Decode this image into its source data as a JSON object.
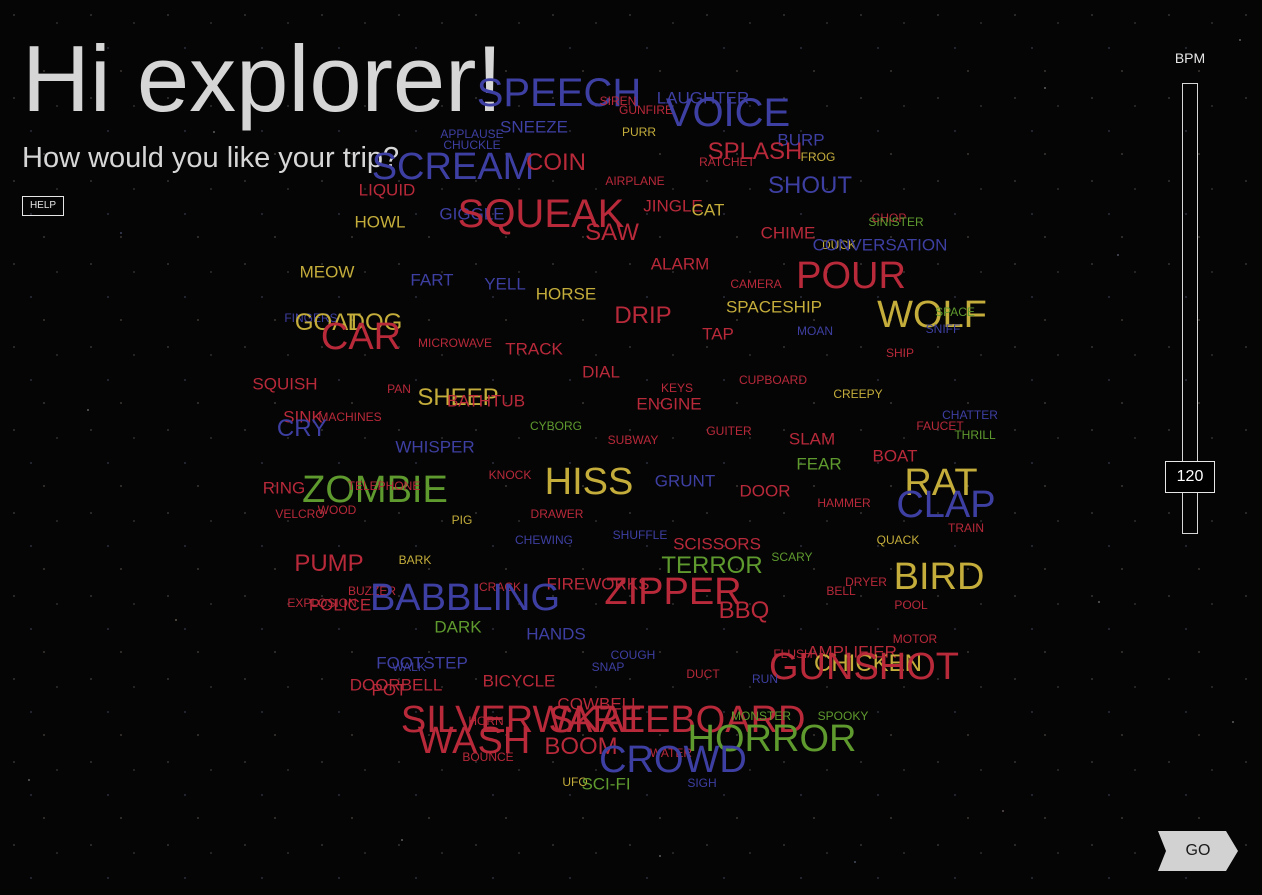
{
  "header": {
    "title": "Hi explorer!",
    "subtitle": "How would you like your trip?",
    "help_label": "HELP"
  },
  "bpm": {
    "label": "BPM",
    "value": 120
  },
  "go_label": "GO",
  "colors": {
    "red": "#b8293a",
    "blue": "#3e3fa2",
    "green": "#5f9a2e",
    "yellow": "#c4ad3b"
  },
  "word_cloud": [
    {
      "text": "SPEECH",
      "color": "blue"
    },
    {
      "text": "SIREN",
      "color": "red"
    },
    {
      "text": "LAUGHTER",
      "color": "blue"
    },
    {
      "text": "GUNFIRE",
      "color": "red"
    },
    {
      "text": "VOICE",
      "color": "blue"
    },
    {
      "text": "APPLAUSE",
      "color": "blue"
    },
    {
      "text": "SNEEZE",
      "color": "blue"
    },
    {
      "text": "PURR",
      "color": "yellow"
    },
    {
      "text": "BURP",
      "color": "blue"
    },
    {
      "text": "CHUCKLE",
      "color": "blue"
    },
    {
      "text": "SPLASH",
      "color": "red"
    },
    {
      "text": "SCREAM",
      "color": "blue"
    },
    {
      "text": "COIN",
      "color": "red"
    },
    {
      "text": "RATCHET",
      "color": "red"
    },
    {
      "text": "FROG",
      "color": "yellow"
    },
    {
      "text": "SHOUT",
      "color": "blue"
    },
    {
      "text": "LIQUID",
      "color": "red"
    },
    {
      "text": "AIRPLANE",
      "color": "red"
    },
    {
      "text": "HOWL",
      "color": "yellow"
    },
    {
      "text": "GIGGLE",
      "color": "blue"
    },
    {
      "text": "SQUEAK",
      "color": "red"
    },
    {
      "text": "JINGLE",
      "color": "red"
    },
    {
      "text": "CAT",
      "color": "yellow"
    },
    {
      "text": "CHOP",
      "color": "red"
    },
    {
      "text": "SINISTER",
      "color": "green"
    },
    {
      "text": "SAW",
      "color": "red"
    },
    {
      "text": "CHIME",
      "color": "red"
    },
    {
      "text": "DUCK",
      "color": "yellow"
    },
    {
      "text": "CONVERSATION",
      "color": "blue"
    },
    {
      "text": "MEOW",
      "color": "yellow"
    },
    {
      "text": "ALARM",
      "color": "red"
    },
    {
      "text": "POUR",
      "color": "red"
    },
    {
      "text": "FART",
      "color": "blue"
    },
    {
      "text": "YELL",
      "color": "blue"
    },
    {
      "text": "CAMERA",
      "color": "red"
    },
    {
      "text": "HORSE",
      "color": "yellow"
    },
    {
      "text": "SPACESHIP",
      "color": "yellow"
    },
    {
      "text": "WOLF",
      "color": "yellow"
    },
    {
      "text": "SPACE",
      "color": "green"
    },
    {
      "text": "FINGERS",
      "color": "blue"
    },
    {
      "text": "GOAT",
      "color": "yellow"
    },
    {
      "text": "DOG",
      "color": "yellow"
    },
    {
      "text": "DRIP",
      "color": "red"
    },
    {
      "text": "CAR",
      "color": "red"
    },
    {
      "text": "TAP",
      "color": "red"
    },
    {
      "text": "MOAN",
      "color": "blue"
    },
    {
      "text": "SNIFF",
      "color": "blue"
    },
    {
      "text": "MICROWAVE",
      "color": "red"
    },
    {
      "text": "TRACK",
      "color": "red"
    },
    {
      "text": "SHIP",
      "color": "red"
    },
    {
      "text": "DIAL",
      "color": "red"
    },
    {
      "text": "SQUISH",
      "color": "red"
    },
    {
      "text": "PAN",
      "color": "red"
    },
    {
      "text": "KEYS",
      "color": "red"
    },
    {
      "text": "CUPBOARD",
      "color": "red"
    },
    {
      "text": "SHEEP",
      "color": "yellow"
    },
    {
      "text": "BATHTUB",
      "color": "red"
    },
    {
      "text": "ENGINE",
      "color": "red"
    },
    {
      "text": "CREEPY",
      "color": "yellow"
    },
    {
      "text": "SINK",
      "color": "red"
    },
    {
      "text": "MACHINES",
      "color": "red"
    },
    {
      "text": "CYBORG",
      "color": "green"
    },
    {
      "text": "GUITER",
      "color": "red"
    },
    {
      "text": "CHATTER",
      "color": "blue"
    },
    {
      "text": "FAUCET",
      "color": "red"
    },
    {
      "text": "CRY",
      "color": "blue"
    },
    {
      "text": "THRILL",
      "color": "green"
    },
    {
      "text": "WHISPER",
      "color": "blue"
    },
    {
      "text": "SUBWAY",
      "color": "red"
    },
    {
      "text": "SLAM",
      "color": "red"
    },
    {
      "text": "BOAT",
      "color": "red"
    },
    {
      "text": "FEAR",
      "color": "green"
    },
    {
      "text": "KNOCK",
      "color": "red"
    },
    {
      "text": "HISS",
      "color": "yellow"
    },
    {
      "text": "GRUNT",
      "color": "blue"
    },
    {
      "text": "RING",
      "color": "red"
    },
    {
      "text": "ZOMBIE",
      "color": "green"
    },
    {
      "text": "TELEPHONE",
      "color": "red"
    },
    {
      "text": "DOOR",
      "color": "red"
    },
    {
      "text": "RAT",
      "color": "yellow"
    },
    {
      "text": "HAMMER",
      "color": "red"
    },
    {
      "text": "CLAP",
      "color": "blue"
    },
    {
      "text": "VELCRO",
      "color": "red"
    },
    {
      "text": "WOOD",
      "color": "red"
    },
    {
      "text": "PIG",
      "color": "yellow"
    },
    {
      "text": "DRAWER",
      "color": "red"
    },
    {
      "text": "TRAIN",
      "color": "red"
    },
    {
      "text": "SHUFFLE",
      "color": "blue"
    },
    {
      "text": "CHEWING",
      "color": "blue"
    },
    {
      "text": "QUACK",
      "color": "yellow"
    },
    {
      "text": "SCISSORS",
      "color": "red"
    },
    {
      "text": "PUMP",
      "color": "red"
    },
    {
      "text": "BARK",
      "color": "yellow"
    },
    {
      "text": "SCARY",
      "color": "green"
    },
    {
      "text": "TERROR",
      "color": "green"
    },
    {
      "text": "DRYER",
      "color": "red"
    },
    {
      "text": "BIRD",
      "color": "yellow"
    },
    {
      "text": "BUZZER",
      "color": "red"
    },
    {
      "text": "CRACK",
      "color": "red"
    },
    {
      "text": "FIREWORKS",
      "color": "red"
    },
    {
      "text": "BABBLING",
      "color": "blue"
    },
    {
      "text": "ZIPPER",
      "color": "red"
    },
    {
      "text": "BELL",
      "color": "red"
    },
    {
      "text": "EXPLOSION",
      "color": "red"
    },
    {
      "text": "POLICE",
      "color": "red"
    },
    {
      "text": "BBQ",
      "color": "red"
    },
    {
      "text": "POOL",
      "color": "red"
    },
    {
      "text": "DARK",
      "color": "green"
    },
    {
      "text": "HANDS",
      "color": "blue"
    },
    {
      "text": "MOTOR",
      "color": "red"
    },
    {
      "text": "COUGH",
      "color": "blue"
    },
    {
      "text": "AMPLIFIER",
      "color": "red"
    },
    {
      "text": "FLUSH",
      "color": "red"
    },
    {
      "text": "FOOTSTEP",
      "color": "blue"
    },
    {
      "text": "CHICKEN",
      "color": "yellow"
    },
    {
      "text": "WALK",
      "color": "blue"
    },
    {
      "text": "GUNSHOT",
      "color": "red"
    },
    {
      "text": "SNAP",
      "color": "blue"
    },
    {
      "text": "DUCT",
      "color": "red"
    },
    {
      "text": "RUN",
      "color": "blue"
    },
    {
      "text": "DOORBELL",
      "color": "red"
    },
    {
      "text": "BICYCLE",
      "color": "red"
    },
    {
      "text": "POT",
      "color": "red"
    },
    {
      "text": "COWBELL",
      "color": "red"
    },
    {
      "text": "SPOOKY",
      "color": "green"
    },
    {
      "text": "HORN",
      "color": "red"
    },
    {
      "text": "SILVERWARE",
      "color": "red"
    },
    {
      "text": "SKATEBOARD",
      "color": "red"
    },
    {
      "text": "MONSTER",
      "color": "green"
    },
    {
      "text": "HORROR",
      "color": "green"
    },
    {
      "text": "WASH",
      "color": "red"
    },
    {
      "text": "BOOM",
      "color": "red"
    },
    {
      "text": "WATER",
      "color": "red"
    },
    {
      "text": "BOUNCE",
      "color": "red"
    },
    {
      "text": "CROWD",
      "color": "blue"
    },
    {
      "text": "UFO",
      "color": "yellow"
    },
    {
      "text": "SCI-FI",
      "color": "green"
    },
    {
      "text": "SIGH",
      "color": "blue"
    },
    {
      "text": "BURST",
      "color": "red"
    },
    {
      "text": "BREATHING",
      "color": "blue"
    }
  ]
}
